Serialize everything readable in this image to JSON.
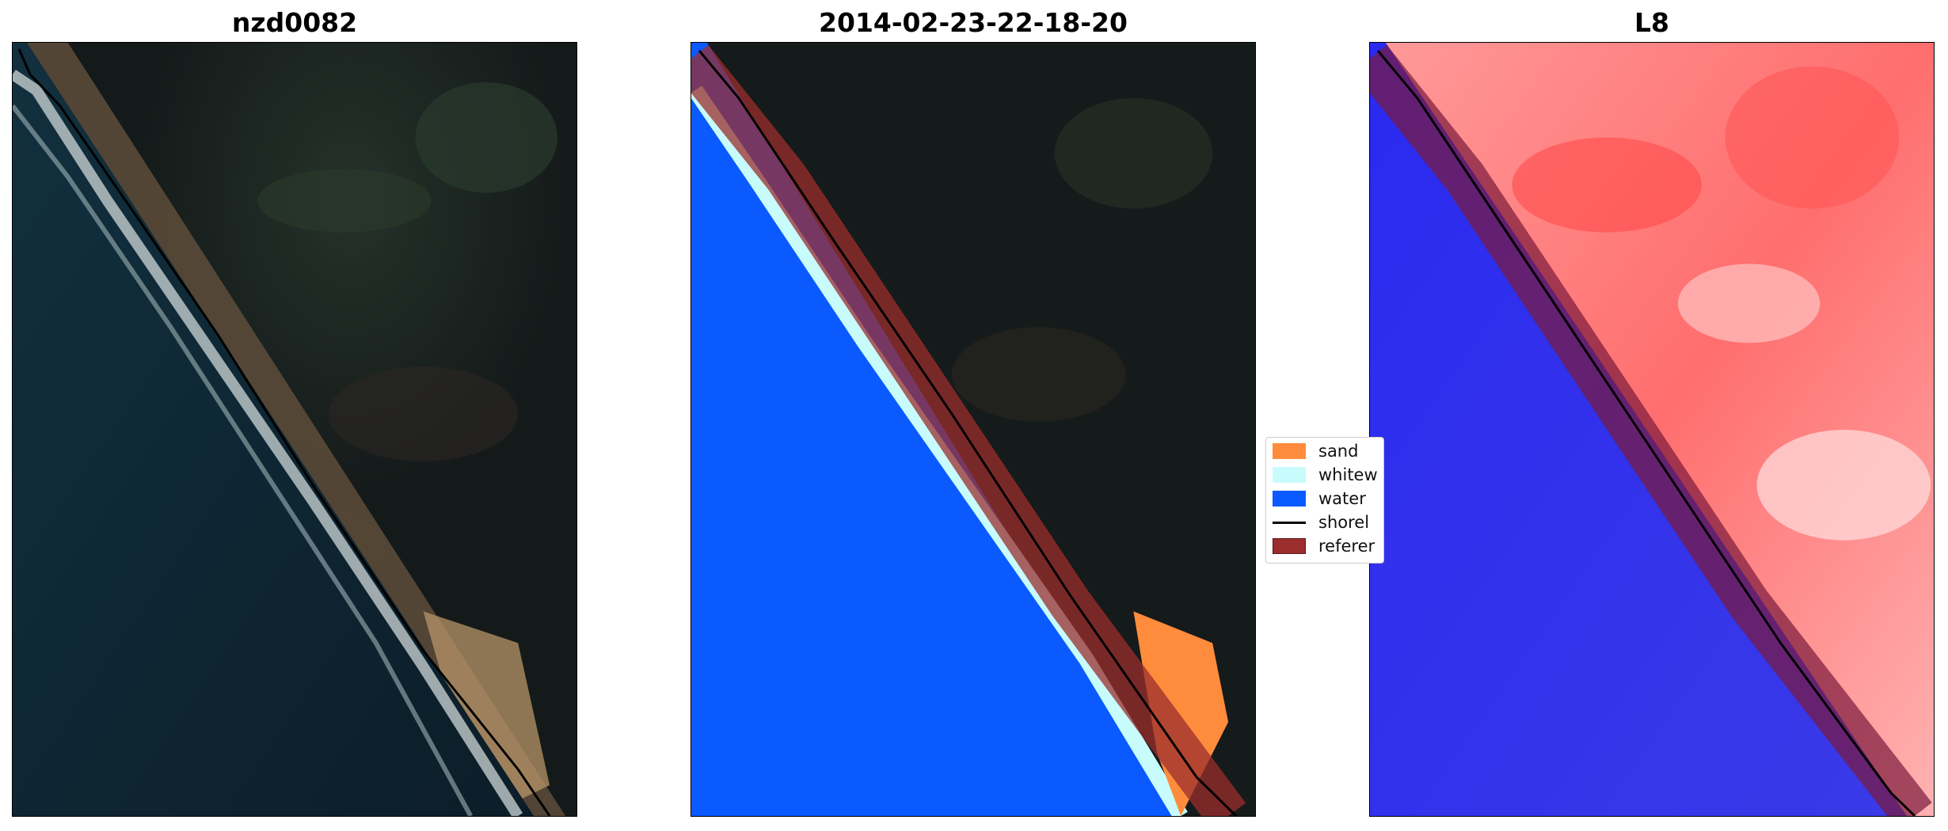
{
  "panels": [
    {
      "title": "nzd0082"
    },
    {
      "title": "2014-02-23-22-18-20"
    },
    {
      "title": "L8"
    }
  ],
  "legend": {
    "items": [
      {
        "label": "sand",
        "color": "#ff8c3c"
      },
      {
        "label": "whitew",
        "color": "#c8fcfc"
      },
      {
        "label": "water",
        "color": "#0a5aff"
      },
      {
        "label": "shorel",
        "color": "#000000"
      },
      {
        "label": "referer",
        "color": "#9b2d2d"
      }
    ]
  },
  "colors": {
    "land_dark": "#151a1a",
    "ocean_dark": "#0f2632",
    "beach_sand": "#b7956a",
    "reference_band": "#9b2d2d",
    "index_water": "#2626e6",
    "index_land": "#ff6464"
  }
}
